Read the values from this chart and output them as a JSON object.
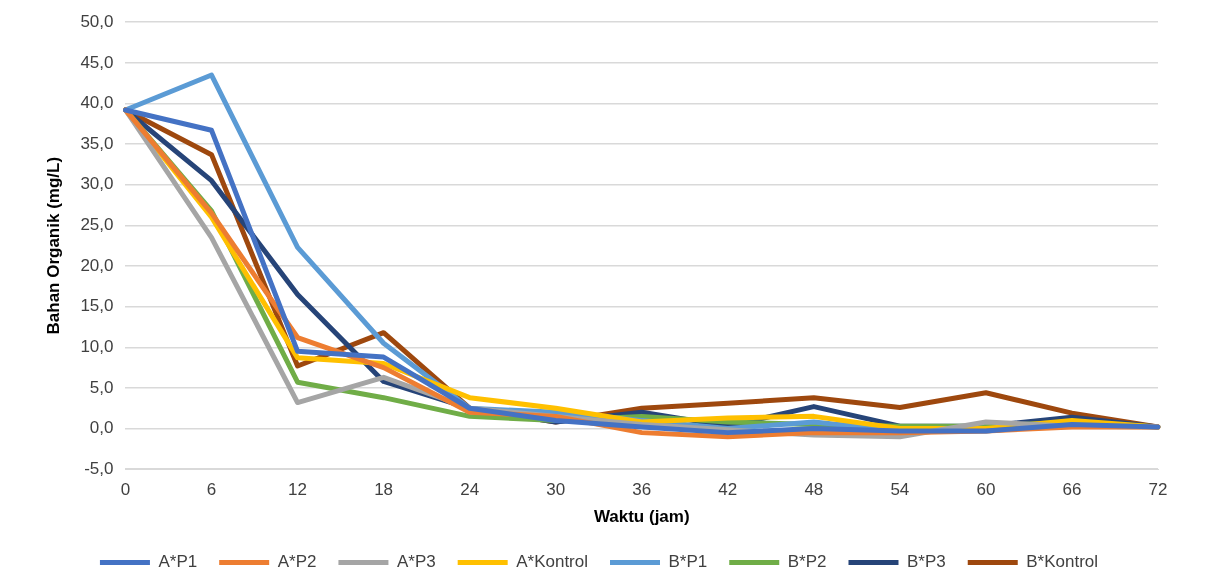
{
  "chart_data": {
    "type": "line",
    "xlabel": "Waktu (jam)",
    "ylabel": "Bahan Organik (mg/L)",
    "categories": [
      "0",
      "6",
      "12",
      "18",
      "24",
      "30",
      "36",
      "42",
      "48",
      "54",
      "60",
      "66",
      "72"
    ],
    "ylim": [
      -5,
      50
    ],
    "yticks": [
      {
        "value": -5,
        "label": "-5,0"
      },
      {
        "value": 0,
        "label": "0,0"
      },
      {
        "value": 5,
        "label": "5,0"
      },
      {
        "value": 10,
        "label": "10,0"
      },
      {
        "value": 15,
        "label": "15,0"
      },
      {
        "value": 20,
        "label": "20,0"
      },
      {
        "value": 25,
        "label": "25,0"
      },
      {
        "value": 30,
        "label": "30,0"
      },
      {
        "value": 35,
        "label": "35,0"
      },
      {
        "value": 40,
        "label": "40,0"
      },
      {
        "value": 45,
        "label": "45,0"
      },
      {
        "value": 50,
        "label": "50,0"
      }
    ],
    "grid": "y",
    "legend": "bottom",
    "marker": "none",
    "line_style": "solid",
    "series": [
      {
        "name": "A*P1",
        "color": "#4472c4",
        "values": [
          39.2,
          36.7,
          9.5,
          8.8,
          2.5,
          1.0,
          0.2,
          -0.5,
          0.0,
          -0.3,
          -0.3,
          0.5,
          0.2
        ]
      },
      {
        "name": "A*P2",
        "color": "#ed7d31",
        "values": [
          39.2,
          26.5,
          11.2,
          7.5,
          2.0,
          1.5,
          -0.5,
          -1.0,
          -0.5,
          -0.5,
          -0.3,
          0.2,
          0.2
        ]
      },
      {
        "name": "A*P3",
        "color": "#a5a5a5",
        "values": [
          39.2,
          23.5,
          3.2,
          6.3,
          2.5,
          1.5,
          0.5,
          null,
          -0.8,
          -1.0,
          0.8,
          0.3,
          0.2
        ]
      },
      {
        "name": "A*Kontrol",
        "color": "#ffc000",
        "values": [
          39.2,
          26.0,
          8.7,
          8.0,
          3.8,
          2.5,
          0.8,
          1.3,
          1.5,
          0.0,
          0.0,
          1.0,
          0.2
        ]
      },
      {
        "name": "B*P1",
        "color": "#5b9bd5",
        "values": [
          39.2,
          43.5,
          22.3,
          10.5,
          2.5,
          2.0,
          1.0,
          0.0,
          0.8,
          -0.3,
          -0.3,
          0.7,
          0.2
        ]
      },
      {
        "name": "B*P2",
        "color": "#70ad47",
        "values": [
          39.2,
          26.8,
          5.7,
          3.8,
          1.5,
          1.0,
          1.5,
          0.8,
          0.5,
          0.3,
          0.3,
          0.8,
          0.2
        ]
      },
      {
        "name": "B*P3",
        "color": "#264478",
        "values": [
          39.2,
          30.5,
          16.5,
          5.8,
          2.5,
          0.8,
          2.0,
          0.3,
          2.7,
          0.3,
          0.3,
          1.4,
          0.2
        ]
      },
      {
        "name": "B*Kontrol",
        "color": "#9e480e",
        "values": [
          39.2,
          33.7,
          7.7,
          11.8,
          2.5,
          0.8,
          2.5,
          3.1,
          3.8,
          2.6,
          4.4,
          1.9,
          0.2
        ]
      }
    ]
  }
}
